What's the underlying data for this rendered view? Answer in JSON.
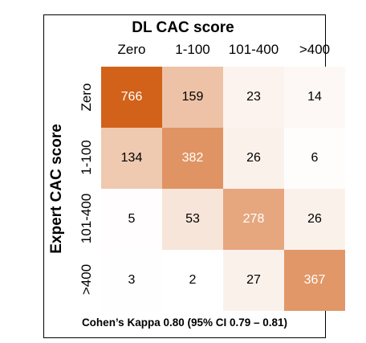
{
  "chart_data": {
    "type": "heatmap",
    "title": "DL CAC score",
    "xlabel": "DL CAC score",
    "ylabel": "Expert CAC score",
    "x_categories": [
      "Zero",
      "1-100",
      "101-400",
      ">400"
    ],
    "y_categories": [
      "Zero",
      "1-100",
      "101-400",
      ">400"
    ],
    "values": [
      [
        766,
        159,
        23,
        14
      ],
      [
        134,
        382,
        26,
        6
      ],
      [
        5,
        53,
        278,
        26
      ],
      [
        3,
        2,
        27,
        367
      ]
    ],
    "colors": {
      "high": "#d2621a",
      "low": "#ffffff"
    },
    "annotation": "Cohen’s Kappa 0.80 (95% CI 0.79 – 0.81)"
  }
}
